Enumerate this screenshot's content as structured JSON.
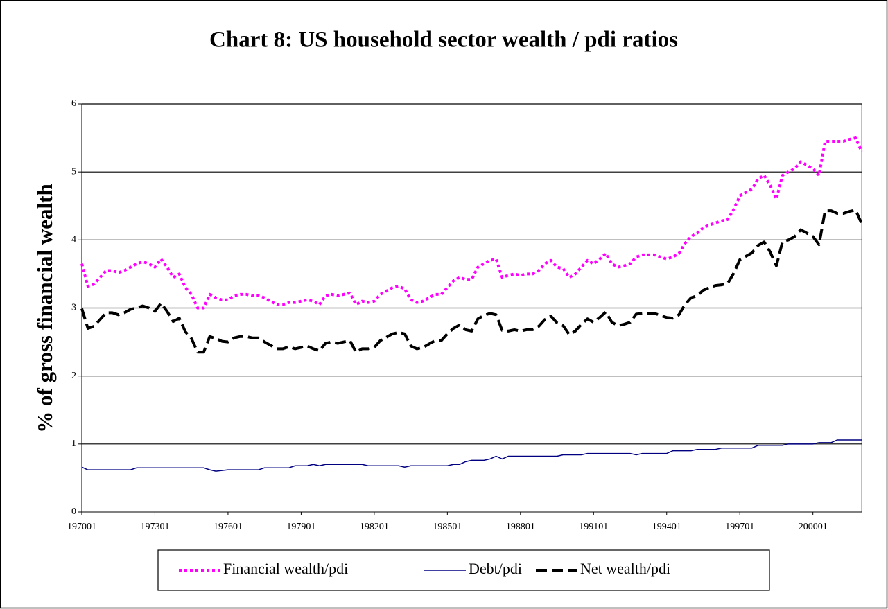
{
  "chart_data": {
    "type": "line",
    "title": "Chart 8: US household sector wealth / pdi ratios",
    "y_label": "% of gross financial wealth",
    "categories": [
      "197001",
      null,
      null,
      null,
      null,
      null,
      null,
      null,
      null,
      null,
      null,
      null,
      "197301",
      null,
      null,
      null,
      null,
      null,
      null,
      null,
      null,
      null,
      null,
      null,
      "197601",
      null,
      null,
      null,
      null,
      null,
      null,
      null,
      null,
      null,
      null,
      null,
      "197901",
      null,
      null,
      null,
      null,
      null,
      null,
      null,
      null,
      null,
      null,
      null,
      "198201",
      null,
      null,
      null,
      null,
      null,
      null,
      null,
      null,
      null,
      null,
      null,
      "198501",
      null,
      null,
      null,
      null,
      null,
      null,
      null,
      null,
      null,
      null,
      null,
      "198801",
      null,
      null,
      null,
      null,
      null,
      null,
      null,
      null,
      null,
      null,
      null,
      "199101",
      null,
      null,
      null,
      null,
      null,
      null,
      null,
      null,
      null,
      null,
      null,
      "199401",
      null,
      null,
      null,
      null,
      null,
      null,
      null,
      null,
      null,
      null,
      null,
      "199701",
      null,
      null,
      null,
      null,
      null,
      null,
      null,
      null,
      null,
      null,
      null,
      "200001",
      null,
      null,
      null,
      null,
      null,
      null,
      null,
      null
    ],
    "series": [
      {
        "name": "Financial wealth/pdi",
        "color": "#ff00ff",
        "line_style": "dotted",
        "values": [
          3.65,
          3.32,
          3.35,
          3.45,
          3.55,
          3.55,
          3.52,
          3.55,
          3.6,
          3.65,
          3.68,
          3.65,
          3.6,
          3.72,
          3.6,
          3.45,
          3.5,
          3.3,
          3.2,
          3.0,
          3.0,
          3.2,
          3.15,
          3.12,
          3.12,
          3.18,
          3.2,
          3.2,
          3.18,
          3.18,
          3.15,
          3.1,
          3.05,
          3.05,
          3.08,
          3.08,
          3.1,
          3.12,
          3.1,
          3.05,
          3.18,
          3.2,
          3.18,
          3.2,
          3.22,
          3.05,
          3.1,
          3.08,
          3.1,
          3.2,
          3.25,
          3.3,
          3.32,
          3.28,
          3.12,
          3.08,
          3.1,
          3.15,
          3.2,
          3.2,
          3.3,
          3.4,
          3.45,
          3.42,
          3.42,
          3.6,
          3.65,
          3.7,
          3.72,
          3.45,
          3.48,
          3.5,
          3.48,
          3.5,
          3.5,
          3.55,
          3.65,
          3.7,
          3.6,
          3.58,
          3.45,
          3.5,
          3.6,
          3.7,
          3.65,
          3.72,
          3.8,
          3.65,
          3.6,
          3.62,
          3.65,
          3.75,
          3.78,
          3.78,
          3.78,
          3.75,
          3.72,
          3.75,
          3.8,
          3.95,
          4.05,
          4.1,
          4.18,
          4.22,
          4.25,
          4.28,
          4.3,
          4.45,
          4.65,
          4.7,
          4.75,
          4.9,
          4.95,
          4.8,
          4.6,
          4.95,
          5.0,
          5.05,
          5.15,
          5.1,
          5.05,
          4.95,
          5.45,
          5.45,
          5.45,
          5.45,
          5.48,
          5.5,
          5.3
        ]
      },
      {
        "name": "Debt/pdi",
        "color": "#000080",
        "line_style": "solid",
        "values": [
          0.66,
          0.62,
          0.62,
          0.62,
          0.62,
          0.62,
          0.62,
          0.62,
          0.62,
          0.65,
          0.65,
          0.65,
          0.65,
          0.65,
          0.65,
          0.65,
          0.65,
          0.65,
          0.65,
          0.65,
          0.65,
          0.62,
          0.6,
          0.61,
          0.62,
          0.62,
          0.62,
          0.62,
          0.62,
          0.62,
          0.65,
          0.65,
          0.65,
          0.65,
          0.65,
          0.68,
          0.68,
          0.68,
          0.7,
          0.68,
          0.7,
          0.7,
          0.7,
          0.7,
          0.7,
          0.7,
          0.7,
          0.68,
          0.68,
          0.68,
          0.68,
          0.68,
          0.68,
          0.66,
          0.68,
          0.68,
          0.68,
          0.68,
          0.68,
          0.68,
          0.68,
          0.7,
          0.7,
          0.74,
          0.76,
          0.76,
          0.76,
          0.78,
          0.82,
          0.78,
          0.82,
          0.82,
          0.82,
          0.82,
          0.82,
          0.82,
          0.82,
          0.82,
          0.82,
          0.84,
          0.84,
          0.84,
          0.84,
          0.86,
          0.86,
          0.86,
          0.86,
          0.86,
          0.86,
          0.86,
          0.86,
          0.84,
          0.86,
          0.86,
          0.86,
          0.86,
          0.86,
          0.9,
          0.9,
          0.9,
          0.9,
          0.92,
          0.92,
          0.92,
          0.92,
          0.94,
          0.94,
          0.94,
          0.94,
          0.94,
          0.94,
          0.98,
          0.98,
          0.98,
          0.98,
          0.98,
          1.0,
          1.0,
          1.0,
          1.0,
          1.0,
          1.02,
          1.02,
          1.02,
          1.06,
          1.06,
          1.06,
          1.06,
          1.06
        ]
      },
      {
        "name": "Net wealth/pdi",
        "color": "#000000",
        "line_style": "dashed",
        "values": [
          2.99,
          2.7,
          2.73,
          2.83,
          2.93,
          2.93,
          2.9,
          2.93,
          2.98,
          3.0,
          3.03,
          3.0,
          2.95,
          3.07,
          2.95,
          2.8,
          2.85,
          2.65,
          2.55,
          2.35,
          2.35,
          2.58,
          2.55,
          2.51,
          2.5,
          2.56,
          2.58,
          2.58,
          2.56,
          2.56,
          2.5,
          2.45,
          2.4,
          2.4,
          2.43,
          2.4,
          2.42,
          2.44,
          2.4,
          2.37,
          2.48,
          2.5,
          2.48,
          2.5,
          2.52,
          2.35,
          2.4,
          2.4,
          2.42,
          2.52,
          2.57,
          2.62,
          2.64,
          2.62,
          2.44,
          2.4,
          2.42,
          2.47,
          2.52,
          2.52,
          2.62,
          2.7,
          2.75,
          2.68,
          2.66,
          2.84,
          2.89,
          2.92,
          2.9,
          2.67,
          2.66,
          2.68,
          2.66,
          2.68,
          2.68,
          2.73,
          2.83,
          2.88,
          2.78,
          2.74,
          2.61,
          2.66,
          2.76,
          2.84,
          2.79,
          2.86,
          2.94,
          2.79,
          2.74,
          2.76,
          2.79,
          2.91,
          2.92,
          2.92,
          2.92,
          2.89,
          2.86,
          2.85,
          2.9,
          3.05,
          3.15,
          3.18,
          3.26,
          3.3,
          3.33,
          3.34,
          3.36,
          3.51,
          3.71,
          3.76,
          3.81,
          3.92,
          3.97,
          3.82,
          3.62,
          3.97,
          4.0,
          4.05,
          4.15,
          4.1,
          4.05,
          3.93,
          4.43,
          4.43,
          4.39,
          4.39,
          4.42,
          4.44,
          4.24
        ]
      }
    ],
    "ylim": [
      0,
      6
    ],
    "yticks": [
      0,
      1,
      2,
      3,
      4,
      5,
      6
    ],
    "grid": true,
    "legend": "bottom"
  }
}
